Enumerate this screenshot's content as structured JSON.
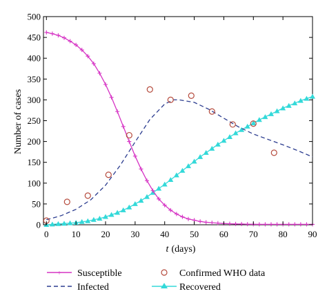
{
  "chart_data": {
    "type": "line",
    "xlabel_var": "t",
    "xlabel_unit": "(days)",
    "ylabel": "Number of cases",
    "xlim": [
      -1,
      90
    ],
    "ylim": [
      0,
      500
    ],
    "xticks": [
      0,
      10,
      20,
      30,
      40,
      50,
      60,
      70,
      80,
      90
    ],
    "yticks": [
      0,
      50,
      100,
      150,
      200,
      250,
      300,
      350,
      400,
      450,
      500
    ],
    "grid": false,
    "legend_position": "bottom",
    "series": [
      {
        "name": "Susceptible",
        "color": "#d633c4",
        "style": "solid-plus-markers",
        "x": [
          0,
          2,
          4,
          6,
          8,
          10,
          12,
          14,
          16,
          18,
          20,
          22,
          24,
          26,
          28,
          30,
          32,
          34,
          36,
          38,
          40,
          42,
          44,
          46,
          48,
          50,
          52,
          54,
          56,
          58,
          60,
          62,
          64,
          66,
          68,
          70,
          72,
          74,
          76,
          78,
          80,
          82,
          84,
          86,
          88,
          90
        ],
        "values": [
          462,
          459,
          455,
          449,
          441,
          432,
          420,
          405,
          387,
          364,
          337,
          306,
          272,
          236,
          200,
          165,
          134,
          106,
          82,
          62,
          47,
          35,
          26,
          19,
          14,
          11,
          8,
          6,
          5,
          4,
          3,
          2.5,
          2,
          1.8,
          1.5,
          1.2,
          1,
          1,
          1,
          1,
          1,
          1,
          1,
          1,
          1,
          1
        ]
      },
      {
        "name": "Infected",
        "color": "#2b3c8f",
        "style": "dashed",
        "x": [
          0,
          5,
          10,
          15,
          20,
          25,
          30,
          35,
          40,
          43,
          45,
          50,
          55,
          60,
          65,
          70,
          75,
          80,
          85,
          90
        ],
        "values": [
          12,
          22,
          37,
          60,
          95,
          143,
          199,
          253,
          290,
          300,
          300,
          294,
          277,
          256,
          235,
          218,
          205,
          192,
          178,
          163
        ]
      },
      {
        "name": "Recovered",
        "color": "#33d9d9",
        "style": "solid-triangle-markers",
        "x": [
          0,
          2,
          4,
          6,
          8,
          10,
          12,
          14,
          16,
          18,
          20,
          22,
          24,
          26,
          28,
          30,
          32,
          34,
          36,
          38,
          40,
          42,
          44,
          46,
          48,
          50,
          52,
          54,
          56,
          58,
          60,
          62,
          64,
          66,
          68,
          70,
          72,
          74,
          76,
          78,
          80,
          82,
          84,
          86,
          88,
          90
        ],
        "values": [
          0,
          1,
          2,
          3,
          4,
          5,
          7,
          9,
          12,
          15,
          19,
          24,
          29,
          35,
          42,
          50,
          58,
          67,
          77,
          87,
          97,
          108,
          119,
          130,
          141,
          152,
          163,
          173,
          183,
          193,
          202,
          211,
          220,
          228,
          236,
          244,
          252,
          259,
          266,
          273,
          280,
          286,
          292,
          298,
          303,
          308
        ]
      }
    ],
    "points": {
      "name": "Confirmed WHO data",
      "color": "#b54a3c",
      "x": [
        0,
        7,
        14,
        21,
        28,
        35,
        42,
        49,
        56,
        63,
        70,
        77
      ],
      "values": [
        10,
        55,
        70,
        120,
        215,
        325,
        300,
        310,
        272,
        241,
        243,
        173
      ]
    }
  }
}
